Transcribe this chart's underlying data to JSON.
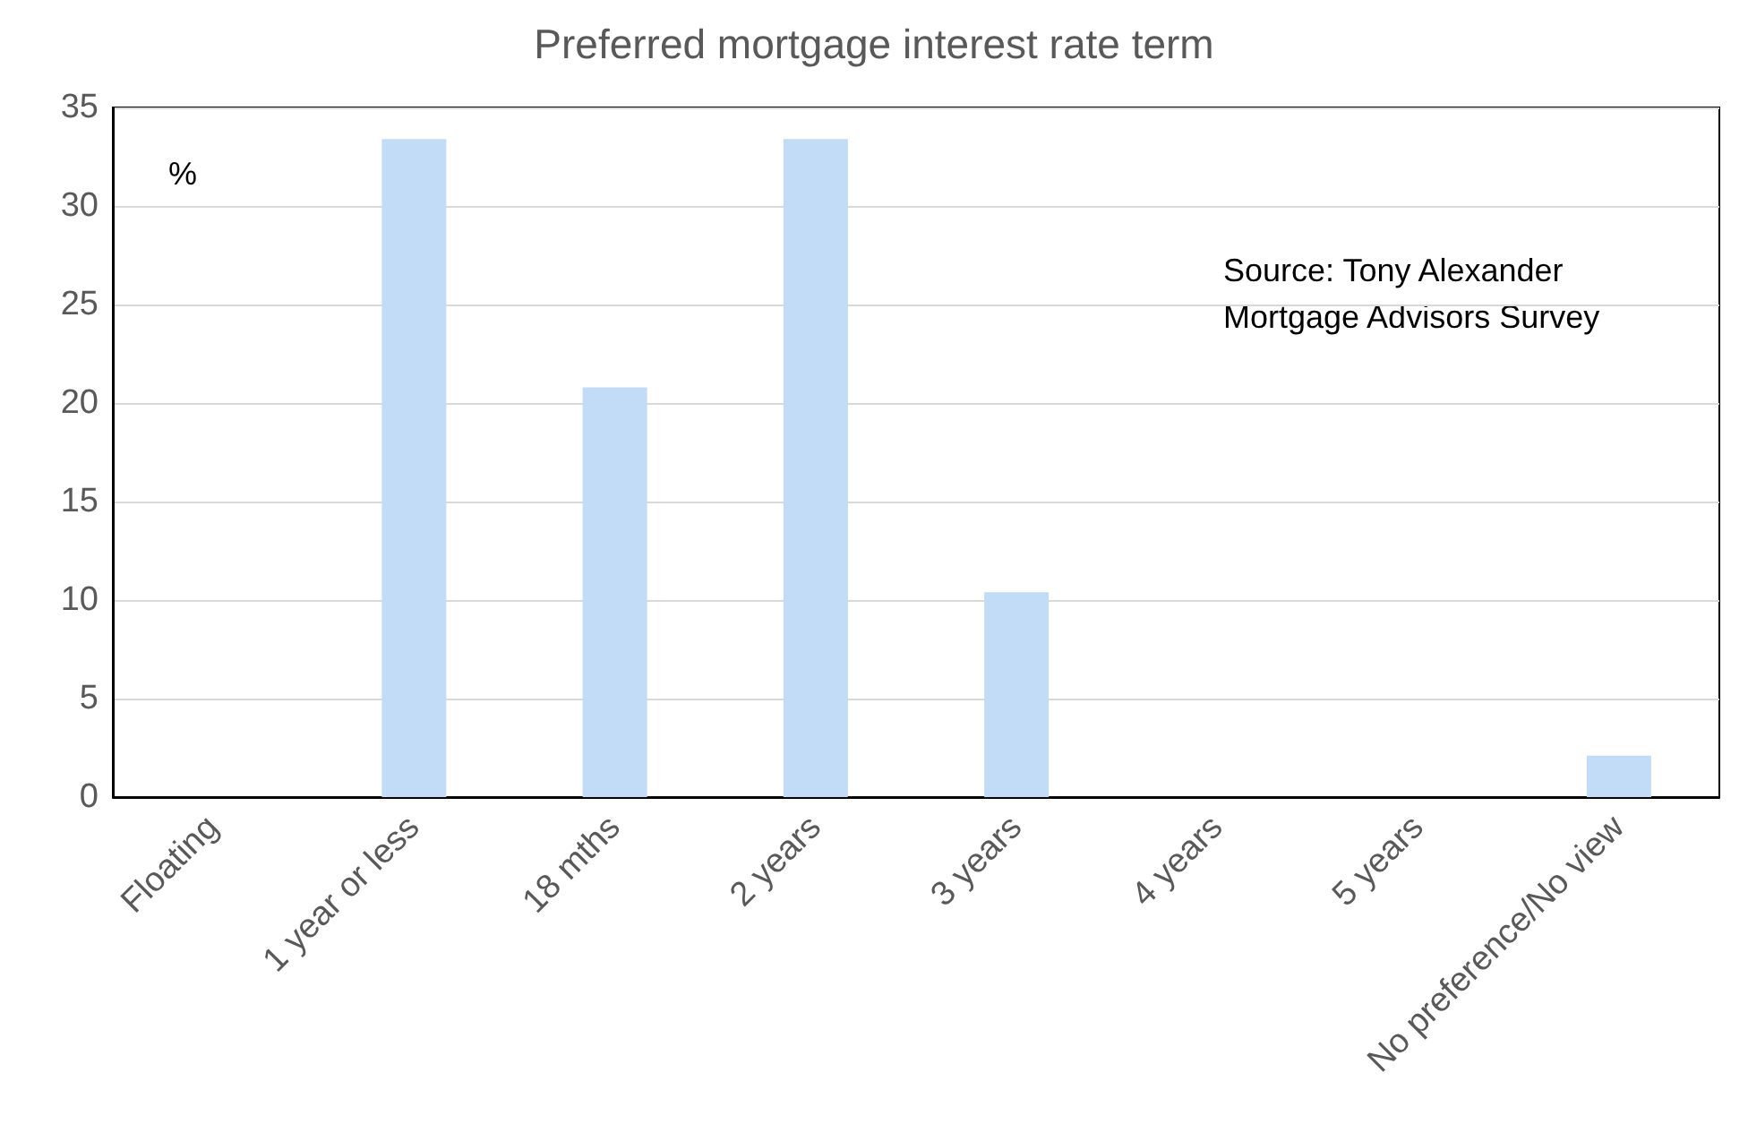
{
  "chart_data": {
    "type": "bar",
    "title": "Preferred mortgage interest rate term",
    "ylabel": "%",
    "annotations": [
      "Source: Tony Alexander Mortgage Advisors Survey"
    ],
    "categories": [
      "Floating",
      "1 year or less",
      "18 mths",
      "2 years",
      "3 years",
      "4 years",
      "5 years",
      "No preference/No view"
    ],
    "values": [
      0,
      33.4,
      20.8,
      33.4,
      10.4,
      0,
      0,
      2.1
    ],
    "color": "#c2dcf7",
    "ylim": [
      0,
      35
    ],
    "yticks": [
      0,
      5,
      10,
      15,
      20,
      25,
      30,
      35
    ],
    "grid": true
  }
}
